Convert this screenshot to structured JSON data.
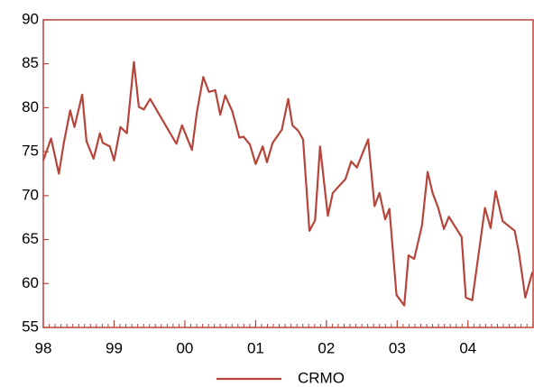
{
  "chart_data": {
    "type": "line",
    "x": [
      1998.0,
      1998.11,
      1998.22,
      1998.29,
      1998.38,
      1998.44,
      1998.55,
      1998.61,
      1998.71,
      1998.8,
      1998.84,
      1998.94,
      1999.0,
      1999.09,
      1999.18,
      1999.28,
      1999.35,
      1999.42,
      1999.51,
      1999.88,
      1999.96,
      2000.1,
      2000.17,
      2000.26,
      2000.34,
      2000.43,
      2000.5,
      2000.57,
      2000.67,
      2000.77,
      2000.83,
      2000.92,
      2001.0,
      2001.1,
      2001.16,
      2001.24,
      2001.37,
      2001.46,
      2001.52,
      2001.6,
      2001.67,
      2001.76,
      2001.84,
      2001.91,
      2002.02,
      2002.09,
      2002.27,
      2002.35,
      2002.43,
      2002.59,
      2002.68,
      2002.75,
      2002.83,
      2002.89,
      2002.99,
      2003.1,
      2003.16,
      2003.24,
      2003.35,
      2003.43,
      2003.5,
      2003.58,
      2003.66,
      2003.73,
      2003.91,
      2003.97,
      2004.06,
      2004.24,
      2004.32,
      2004.39,
      2004.49,
      2004.66,
      2004.72,
      2004.81,
      2004.91
    ],
    "series": [
      {
        "name": "CRMO",
        "color": "#b5453a",
        "values": [
          74,
          76.5,
          72.5,
          76,
          79.7,
          77.8,
          81.5,
          76.2,
          74.2,
          77.1,
          76,
          75.6,
          74,
          77.8,
          77.1,
          85.2,
          80.1,
          79.8,
          81,
          75.9,
          78,
          75.2,
          79.5,
          83.5,
          81.8,
          82,
          79.2,
          81.4,
          79.6,
          76.6,
          76.7,
          75.8,
          73.6,
          75.6,
          73.8,
          76,
          77.5,
          81,
          78,
          77.4,
          76.4,
          66,
          67.2,
          75.6,
          67.7,
          70.3,
          71.9,
          73.9,
          73.2,
          76.4,
          68.8,
          70.3,
          67.3,
          68.5,
          58.7,
          57.5,
          63.2,
          62.8,
          66.6,
          72.7,
          70.3,
          68.6,
          66.2,
          67.6,
          65.3,
          58.4,
          58.1,
          68.6,
          66.3,
          70.5,
          67.1,
          66,
          63.5,
          58.4,
          61.3
        ]
      }
    ],
    "xlim": [
      1998,
      2004.92
    ],
    "xticks": [
      {
        "value": 1998,
        "label": "98"
      },
      {
        "value": 1999,
        "label": "99"
      },
      {
        "value": 2000,
        "label": "00"
      },
      {
        "value": 2001,
        "label": "01"
      },
      {
        "value": 2002,
        "label": "02"
      },
      {
        "value": 2003,
        "label": "03"
      },
      {
        "value": 2004,
        "label": "04"
      }
    ],
    "ylim": [
      55,
      90
    ],
    "yticks": [
      55,
      60,
      65,
      70,
      75,
      80,
      85,
      90
    ]
  }
}
